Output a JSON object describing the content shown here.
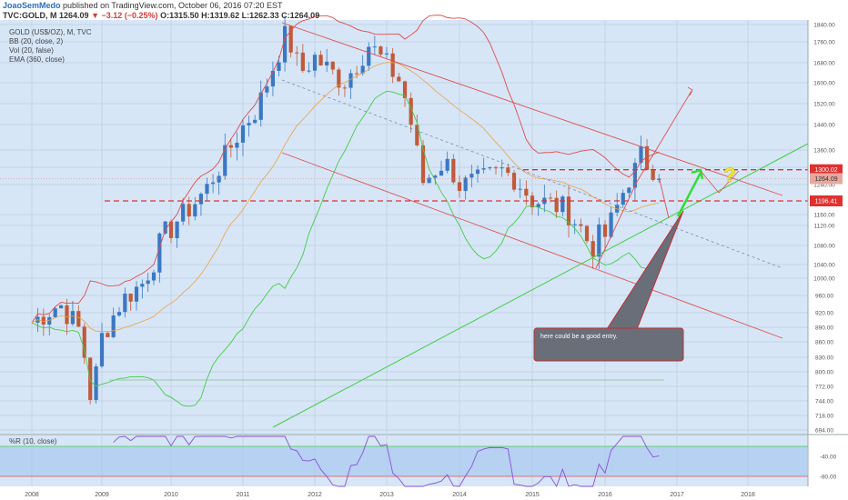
{
  "header": {
    "author": "JoaoSemMedo",
    "published": "published on TradingView.com, October 06, 2016 07:20 EST",
    "symbol": "TVC:GOLD, M",
    "last": "1264.09",
    "change": "−3.12 (−0.25%)",
    "ohlc": "O:1315.50 H:1319.62 L:1262.33 C:1264.09"
  },
  "indicators": [
    "GOLD (US$/OZ), M, TVC",
    "BB (20, close, 2)",
    "Vol (20, false)",
    "EMA (360, close)"
  ],
  "oscillator_label": "%R (10, close)",
  "colors": {
    "candle_up": "#3a78c4",
    "candle_down": "#c05a3a",
    "bb": "#e04a4a",
    "ema": "#f0a040",
    "green_line": "#44cc44",
    "price_tag": "#e03030",
    "last_tag": "#e8a79e"
  },
  "chart_data": {
    "type": "candlestick",
    "title": "GOLD (US$/OZ), M, TVC",
    "x_ticks": [
      "2008",
      "2009",
      "2010",
      "2011",
      "2012",
      "2013",
      "2014",
      "2015",
      "2016",
      "2017",
      "2018"
    ],
    "y_ticks": [
      1840.0,
      1760.0,
      1680.0,
      1600.0,
      1520.0,
      1440.0,
      1360.0,
      1310.0,
      1240.0,
      1160.0,
      1120.0,
      1080.0,
      1040.0,
      1000.0,
      960.0,
      920.0,
      890.0,
      860.0,
      830.0,
      800.0,
      772.0,
      744.0,
      718.0,
      694.0
    ],
    "price_tags": [
      {
        "value": "1300.02",
        "price": 1300.02,
        "style": "resistance"
      },
      {
        "value": "1264.09",
        "price": 1264.09,
        "style": "last"
      },
      {
        "value": "1196.41",
        "price": 1196.41,
        "style": "support"
      }
    ],
    "osc_ticks": [
      -40.0,
      -80.0
    ],
    "annotation": "here could be a good entry.",
    "question_mark": "?"
  }
}
